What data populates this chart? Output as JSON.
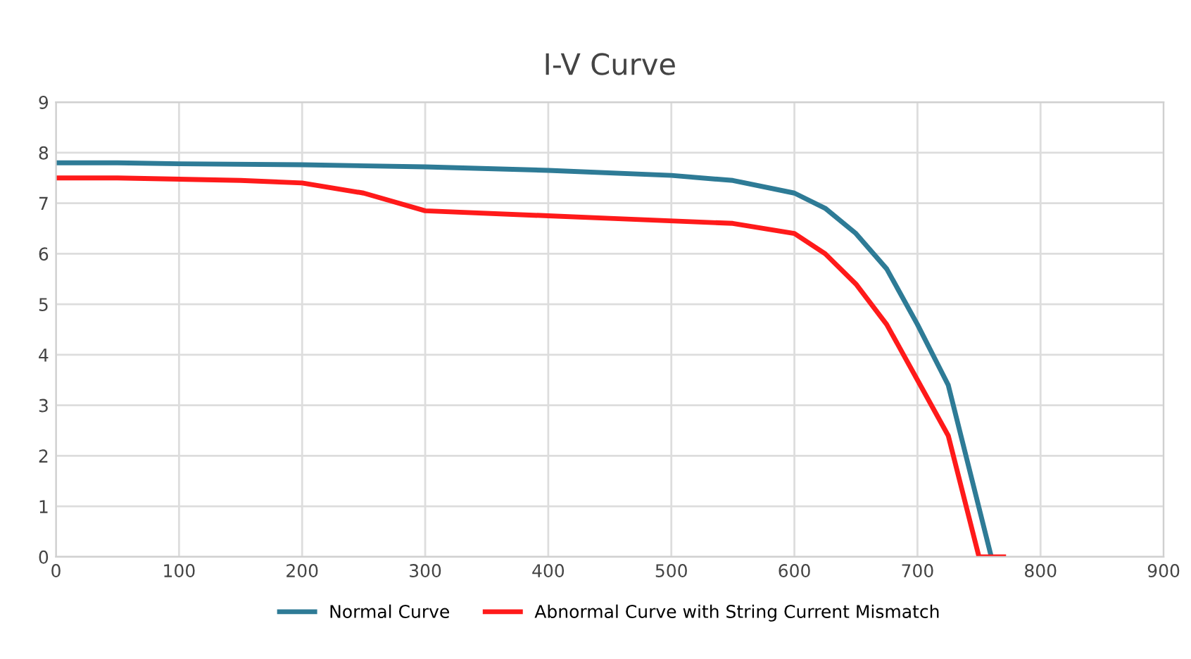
{
  "chart_data": {
    "type": "line",
    "title": "I-V Curve",
    "xlim": [
      0,
      900
    ],
    "xticks": [
      0,
      100,
      200,
      300,
      400,
      500,
      600,
      700,
      800,
      900
    ],
    "ylim": [
      0,
      9
    ],
    "yticks": [
      0,
      1,
      2,
      3,
      4,
      5,
      6,
      7,
      8,
      9
    ],
    "grid": true,
    "legend": "bottom",
    "marker": "none",
    "line_style": "solid",
    "series": [
      {
        "name": "Normal Curve",
        "color": "#2e7b96",
        "x": [
          0,
          50,
          100,
          200,
          300,
          400,
          500,
          550,
          600,
          625,
          650,
          675,
          700,
          725,
          760
        ],
        "values": [
          7.8,
          7.8,
          7.78,
          7.76,
          7.72,
          7.65,
          7.55,
          7.45,
          7.2,
          6.9,
          6.4,
          5.7,
          4.6,
          3.4,
          0
        ]
      },
      {
        "name": "Abnormal Curve with String Current Mismatch",
        "color": "#ff1a1a",
        "x": [
          0,
          50,
          150,
          200,
          250,
          300,
          400,
          450,
          550,
          600,
          625,
          650,
          675,
          700,
          725,
          750,
          770
        ],
        "values": [
          7.5,
          7.5,
          7.45,
          7.4,
          7.2,
          6.85,
          6.75,
          6.7,
          6.6,
          6.4,
          6.0,
          5.4,
          4.6,
          3.5,
          2.4,
          0,
          0
        ]
      }
    ]
  }
}
